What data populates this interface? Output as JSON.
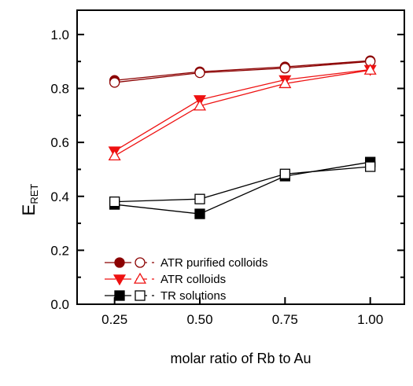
{
  "chart_data": {
    "type": "line",
    "xlabel": "molar ratio of Rb to Au",
    "ylabel_main": "E",
    "ylabel_sub": "RET",
    "x": [
      0.25,
      0.5,
      0.75,
      1.0
    ],
    "xticks": [
      "0.25",
      "0.50",
      "0.75",
      "1.00"
    ],
    "yticks": [
      "0.0",
      "0.2",
      "0.4",
      "0.6",
      "0.8",
      "1.0"
    ],
    "xlim": [
      0.14,
      1.1
    ],
    "ylim": [
      0.0,
      1.09
    ],
    "grid": false,
    "legend_position": "lower-left",
    "series": [
      {
        "name": "ATR purified colloids",
        "color": "#8b0000",
        "solid_marker": "circle",
        "open_marker": "circle",
        "solid_values": [
          0.83,
          0.862,
          0.88,
          0.903
        ],
        "open_values": [
          0.822,
          0.858,
          0.875,
          0.9
        ]
      },
      {
        "name": "ATR colloids",
        "color": "#ee1111",
        "solid_marker": "triangle-down",
        "open_marker": "triangle-up",
        "solid_values": [
          0.568,
          0.758,
          0.832,
          0.87
        ],
        "open_values": [
          0.55,
          0.735,
          0.818,
          0.868
        ]
      },
      {
        "name": "TR solutions",
        "color": "#000000",
        "solid_marker": "square",
        "open_marker": "square",
        "solid_values": [
          0.37,
          0.335,
          0.475,
          0.527
        ],
        "open_values": [
          0.38,
          0.39,
          0.483,
          0.51
        ]
      }
    ]
  }
}
